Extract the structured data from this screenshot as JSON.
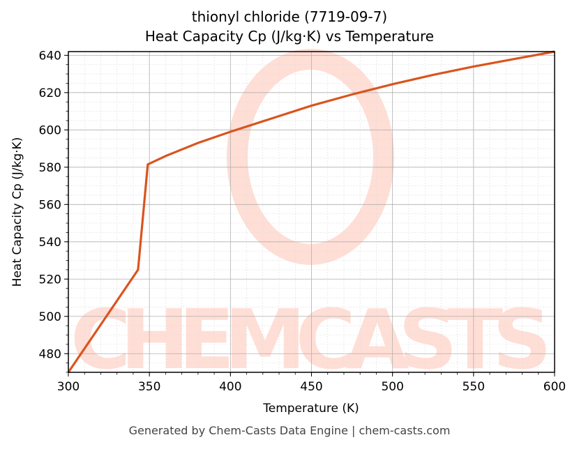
{
  "title_line1": "thionyl chloride (7719-09-7)",
  "title_line2": "Heat Capacity Cp (J/kg·K) vs Temperature",
  "footer": "Generated by Chem-Casts Data Engine | chem-casts.com",
  "watermark": "CHEMCASTS",
  "colors": {
    "line": "#d9541e",
    "watermark": "#ffd6cc",
    "grid_major": "#b0b0b0",
    "grid_minor": "#dddddd"
  },
  "chart_data": {
    "type": "line",
    "title": "thionyl chloride (7719-09-7) Heat Capacity Cp (J/kg·K) vs Temperature",
    "xlabel": "Temperature (K)",
    "ylabel": "Heat Capacity Cp (J/kg·K)",
    "xlim": [
      300,
      600
    ],
    "ylim": [
      470,
      642
    ],
    "xticks": [
      300,
      350,
      400,
      450,
      500,
      550,
      600
    ],
    "yticks": [
      480,
      500,
      520,
      540,
      560,
      580,
      600,
      620,
      640
    ],
    "grid": true,
    "series": [
      {
        "name": "Cp",
        "x": [
          300,
          343,
          349,
          360,
          380,
          400,
          425,
          450,
          475,
          500,
          525,
          550,
          575,
          600
        ],
        "y": [
          470,
          525,
          581.5,
          586,
          593,
          599,
          606,
          613,
          619,
          624.5,
          629.5,
          634,
          638,
          642
        ]
      }
    ]
  }
}
